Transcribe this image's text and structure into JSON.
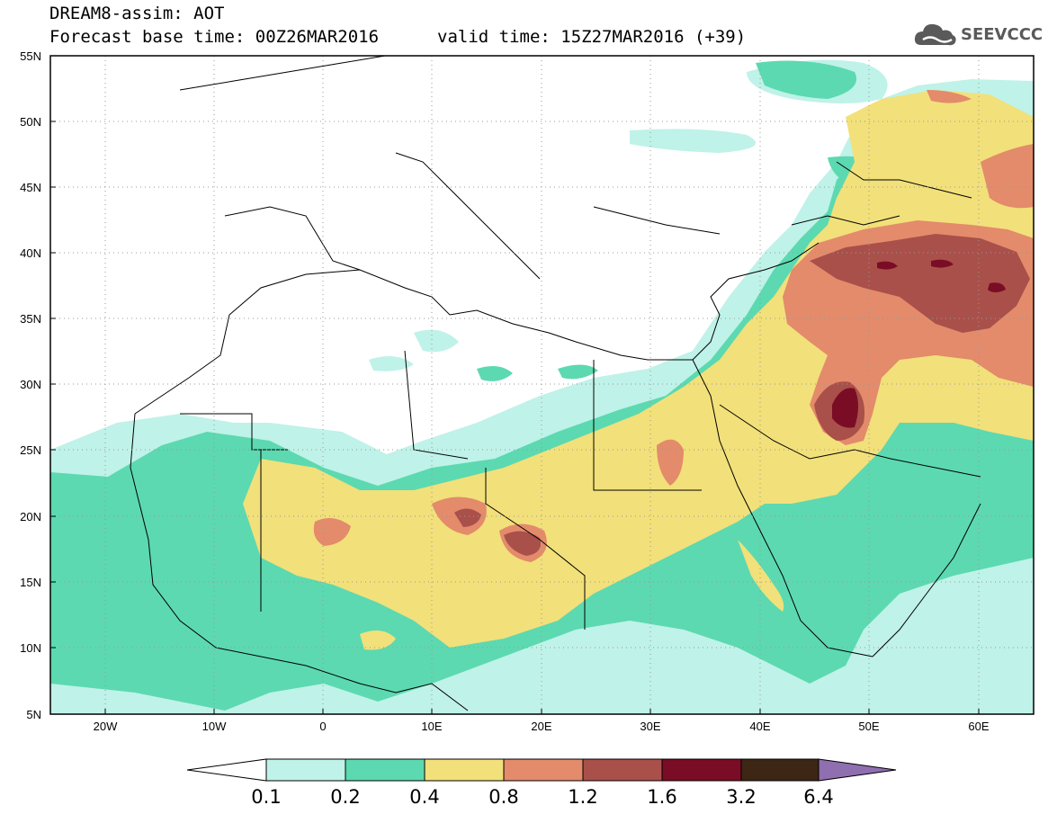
{
  "header": {
    "product": "DREAM8-assim: AOT",
    "base_time": "Forecast base time: 00Z26MAR2016",
    "valid_time": "valid time: 15Z27MAR2016 (+39)"
  },
  "logo": {
    "text": "SEEVCCC",
    "icon": "cloud-icon"
  },
  "map": {
    "lon_range": [
      -25,
      65
    ],
    "lat_range": [
      5,
      55
    ],
    "lat_labels": [
      "55N",
      "50N",
      "45N",
      "40N",
      "35N",
      "30N",
      "25N",
      "20N",
      "15N",
      "10N",
      "5N"
    ],
    "lon_labels": [
      "20W",
      "10W",
      "0",
      "10E",
      "20E",
      "30E",
      "40E",
      "50E",
      "60E"
    ],
    "grid": true
  },
  "colorbar": {
    "labels": [
      "0.1",
      "0.2",
      "0.4",
      "0.8",
      "1.2",
      "1.6",
      "3.2",
      "6.4"
    ],
    "colors": [
      "#bff2e8",
      "#5cd9b0",
      "#f2e07a",
      "#e38b6b",
      "#a9504a",
      "#7a0d25",
      "#3d2614",
      "#8f6fb0"
    ]
  },
  "colors": {
    "c01": "#bff2e8",
    "c02": "#5cd9b0",
    "c04": "#f2e07a",
    "c08": "#e38b6b",
    "c12": "#a9504a",
    "c16": "#7a0d25"
  }
}
